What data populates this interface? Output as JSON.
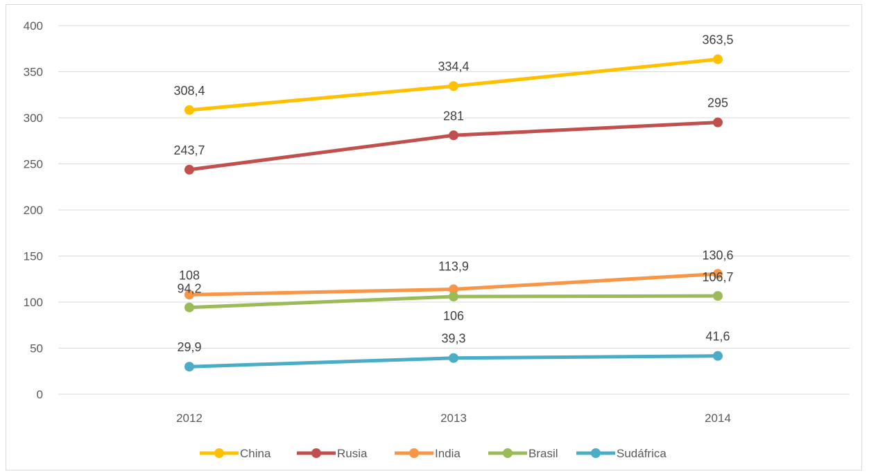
{
  "chart_data": {
    "type": "line",
    "title": "",
    "xlabel": "",
    "ylabel": "",
    "categories": [
      "2012",
      "2013",
      "2014"
    ],
    "ylim": [
      0,
      400
    ],
    "yticks": [
      0,
      50,
      100,
      150,
      200,
      250,
      300,
      350,
      400
    ],
    "grid": true,
    "legend_position": "bottom",
    "series": [
      {
        "name": "China",
        "color": "#FFC000",
        "values": [
          308.4,
          334.4,
          363.5
        ],
        "labels": [
          "308,4",
          "334,4",
          "363,5"
        ]
      },
      {
        "name": "Rusia",
        "color": "#C0504D",
        "values": [
          243.7,
          281,
          295
        ],
        "labels": [
          "243,7",
          "281",
          "295"
        ]
      },
      {
        "name": "India",
        "color": "#F79646",
        "values": [
          108,
          113.9,
          130.6
        ],
        "labels": [
          "108",
          "113,9",
          "130,6"
        ]
      },
      {
        "name": "Brasil",
        "color": "#9BBB59",
        "values": [
          94.2,
          106,
          106.7
        ],
        "labels": [
          "94,2",
          "106",
          "106,7"
        ]
      },
      {
        "name": "Sudáfrica",
        "color": "#4BACC6",
        "values": [
          29.9,
          39.3,
          41.6
        ],
        "labels": [
          "29,9",
          "39,3",
          "41,6"
        ]
      }
    ]
  }
}
